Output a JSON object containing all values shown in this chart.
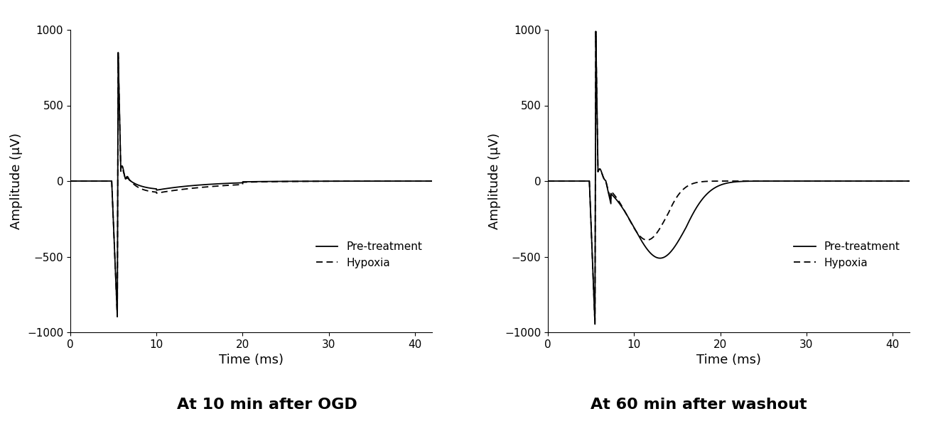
{
  "xlim": [
    0,
    42
  ],
  "ylim": [
    -1000,
    1000
  ],
  "xticks": [
    0,
    10,
    20,
    30,
    40
  ],
  "yticks": [
    -1000,
    -500,
    0,
    500,
    1000
  ],
  "xlabel": "Time (ms)",
  "ylabel": "Amplitude (μV)",
  "title1": "At 10 min after OGD",
  "title2": "At 60 min after washout",
  "legend_solid": "Pre-treatment",
  "legend_dashed": "Hypoxia",
  "line_color": "#000000",
  "background_color": "#ffffff",
  "title_fontsize": 16,
  "axis_fontsize": 13,
  "tick_fontsize": 11,
  "legend_fontsize": 11
}
